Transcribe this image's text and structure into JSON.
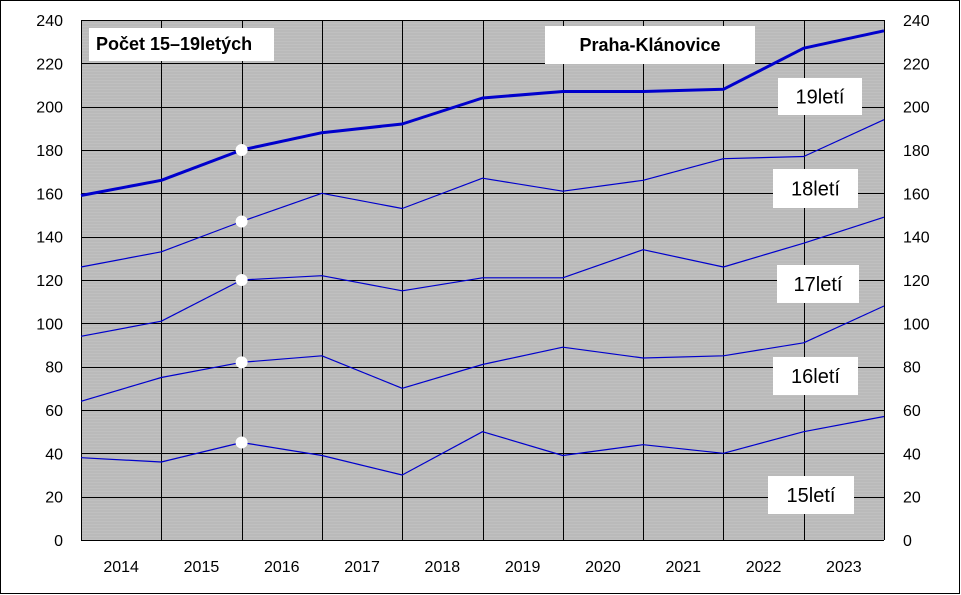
{
  "chart_data": {
    "type": "line",
    "title": "Počet 15–19letých",
    "subtitle": "Praha-Klánovice",
    "xlabel": "",
    "ylabel": "",
    "ylim": [
      0,
      240
    ],
    "ytick_step": 20,
    "year_labels": [
      "2014",
      "2015",
      "2016",
      "2017",
      "2018",
      "2019",
      "2020",
      "2021",
      "2022",
      "2023"
    ],
    "x": [
      0,
      1,
      2,
      3,
      4,
      5,
      6,
      7,
      8,
      9,
      10
    ],
    "grid": true,
    "series": [
      {
        "name": "15letí",
        "values": [
          38,
          36,
          45,
          39,
          30,
          50,
          39,
          44,
          40,
          50,
          57
        ],
        "emphasis": false
      },
      {
        "name": "16letí",
        "values": [
          64,
          75,
          82,
          85,
          70,
          81,
          89,
          84,
          85,
          91,
          108
        ],
        "emphasis": false
      },
      {
        "name": "17letí",
        "values": [
          94,
          101,
          120,
          122,
          115,
          121,
          121,
          134,
          126,
          137,
          149
        ],
        "emphasis": false
      },
      {
        "name": "18letí",
        "values": [
          126,
          133,
          147,
          160,
          153,
          167,
          161,
          166,
          176,
          177,
          194
        ],
        "emphasis": false
      },
      {
        "name": "19letí",
        "values": [
          159,
          166,
          180,
          188,
          192,
          204,
          207,
          207,
          208,
          227,
          235
        ],
        "emphasis": true
      }
    ],
    "markers": [
      {
        "series": "15letí",
        "x": 2,
        "y": 45
      },
      {
        "series": "16letí",
        "x": 2,
        "y": 82
      },
      {
        "series": "17letí",
        "x": 2,
        "y": 120
      },
      {
        "series": "18letí",
        "x": 2,
        "y": 147
      },
      {
        "series": "19letí",
        "x": 2,
        "y": 180
      }
    ],
    "colors": {
      "line": "#0000CC",
      "plot_background": "#C0C0C0",
      "grid": "#000000",
      "label_box": "#FFFFFF",
      "marker": "#FFFFFF"
    }
  }
}
